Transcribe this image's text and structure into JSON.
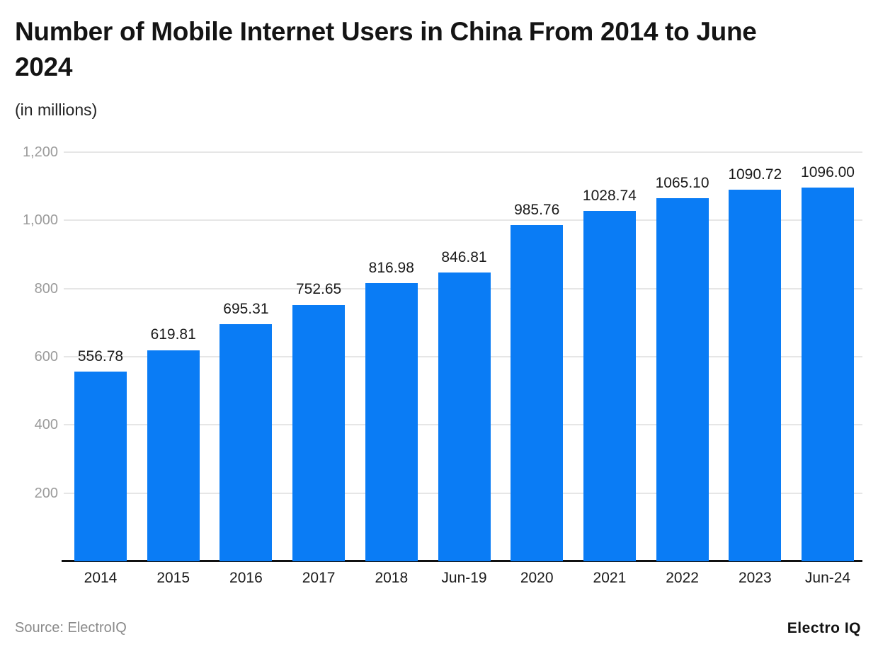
{
  "page": {
    "title": "Number of Mobile Internet Users in China From 2014 to June 2024",
    "subtitle": "(in millions)",
    "source": "Source: ElectroIQ",
    "brand": "Electro IQ"
  },
  "colors": {
    "bar": "#0a7cf5",
    "gridline": "#e6e6e6",
    "axis_line": "#111111",
    "tick_label": "#9b9b9b",
    "value_label": "#1a1a1a",
    "background": "#ffffff"
  },
  "chart_data": {
    "type": "bar",
    "title": "Number of Mobile Internet Users in China From 2014 to June 2024",
    "subtitle": "(in millions)",
    "categories": [
      "2014",
      "2015",
      "2016",
      "2017",
      "2018",
      "Jun-19",
      "2020",
      "2021",
      "2022",
      "2023",
      "Jun-24"
    ],
    "values": [
      556.78,
      619.81,
      695.31,
      752.65,
      816.98,
      846.81,
      985.76,
      1028.74,
      1065.1,
      1090.72,
      1096.0
    ],
    "value_labels": [
      "556.78",
      "619.81",
      "695.31",
      "752.65",
      "816.98",
      "846.81",
      "985.76",
      "1028.74",
      "1065.10",
      "1090.72",
      "1096.00"
    ],
    "xlabel": "",
    "ylabel": "",
    "ylim": [
      0,
      1200
    ],
    "yticks": [
      200,
      400,
      600,
      800,
      1000,
      1200
    ],
    "ytick_labels": [
      "200",
      "400",
      "600",
      "800",
      "1,000",
      "1,200"
    ],
    "grid": true,
    "legend": false,
    "bar_color": "#0a7cf5"
  }
}
